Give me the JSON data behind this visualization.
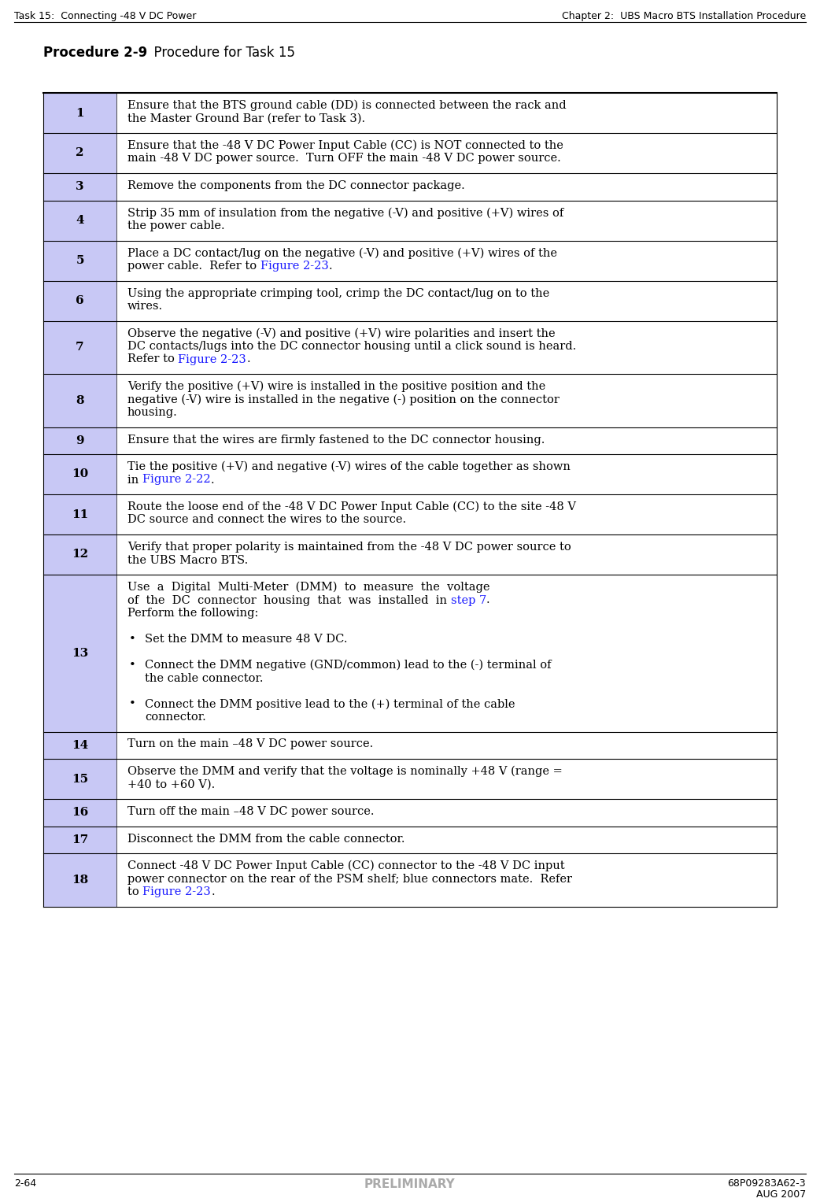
{
  "header_left": "Task 15:  Connecting -48 V DC Power",
  "header_right": "Chapter 2:  UBS Macro BTS Installation Procedure",
  "title_bold": "Procedure 2-9",
  "title_normal": "  Procedure for Task 15",
  "footer_left": "2-64",
  "footer_center": "PRELIMINARY",
  "footer_right": "68P09283A62-3",
  "footer_right2": "AUG 2007",
  "step_col_color": "#c8c8f5",
  "rows": [
    {
      "num": "1",
      "lines": [
        {
          "text": "Ensure that the BTS ground cable (DD) is connected between the rack and",
          "color": "black"
        },
        {
          "text": "the Master Ground Bar (refer to Task 3).",
          "color": "black"
        }
      ]
    },
    {
      "num": "2",
      "lines": [
        {
          "text": "Ensure that the -48 V DC Power Input Cable (CC) is NOT connected to the",
          "color": "black"
        },
        {
          "text": "main -48 V DC power source.  Turn OFF the main -48 V DC power source.",
          "color": "black"
        }
      ]
    },
    {
      "num": "3",
      "lines": [
        {
          "text": "Remove the components from the DC connector package.",
          "color": "black"
        }
      ]
    },
    {
      "num": "4",
      "lines": [
        {
          "text": "Strip 35 mm of insulation from the negative (-V) and positive (+V) wires of",
          "color": "black"
        },
        {
          "text": "the power cable.",
          "color": "black"
        }
      ]
    },
    {
      "num": "5",
      "lines": [
        {
          "text": "Place a DC contact/lug on the negative (-V) and positive (+V) wires of the",
          "color": "black"
        },
        {
          "text_parts": [
            {
              "text": "power cable.  Refer to ",
              "color": "black"
            },
            {
              "text": "Figure 2-23",
              "color": "#1a1aff"
            },
            {
              "text": ".",
              "color": "black"
            }
          ]
        }
      ]
    },
    {
      "num": "6",
      "lines": [
        {
          "text": "Using the appropriate crimping tool, crimp the DC contact/lug on to the",
          "color": "black"
        },
        {
          "text": "wires.",
          "color": "black"
        }
      ]
    },
    {
      "num": "7",
      "lines": [
        {
          "text": "Observe the negative (-V) and positive (+V) wire polarities and insert the",
          "color": "black"
        },
        {
          "text": "DC contacts/lugs into the DC connector housing until a click sound is heard.",
          "color": "black"
        },
        {
          "text_parts": [
            {
              "text": "Refer to ",
              "color": "black"
            },
            {
              "text": "Figure 2-23",
              "color": "#1a1aff"
            },
            {
              "text": ".",
              "color": "black"
            }
          ]
        }
      ]
    },
    {
      "num": "8",
      "lines": [
        {
          "text": "Verify the positive (+V) wire is installed in the positive position and the",
          "color": "black"
        },
        {
          "text": "negative (-V) wire is installed in the negative (-) position on the connector",
          "color": "black"
        },
        {
          "text": "housing.",
          "color": "black"
        }
      ]
    },
    {
      "num": "9",
      "lines": [
        {
          "text": "Ensure that the wires are firmly fastened to the DC connector housing.",
          "color": "black"
        }
      ]
    },
    {
      "num": "10",
      "lines": [
        {
          "text": "Tie the positive (+V) and negative (-V) wires of the cable together as shown",
          "color": "black"
        },
        {
          "text_parts": [
            {
              "text": "in ",
              "color": "black"
            },
            {
              "text": "Figure 2-22",
              "color": "#1a1aff"
            },
            {
              "text": ".",
              "color": "black"
            }
          ]
        }
      ]
    },
    {
      "num": "11",
      "lines": [
        {
          "text": "Route the loose end of the -48 V DC Power Input Cable (CC) to the site -48 V",
          "color": "black"
        },
        {
          "text": "DC source and connect the wires to the source.",
          "color": "black"
        }
      ]
    },
    {
      "num": "12",
      "lines": [
        {
          "text": "Verify that proper polarity is maintained from the -48 V DC power source to",
          "color": "black"
        },
        {
          "text": "the UBS Macro BTS.",
          "color": "black"
        }
      ]
    },
    {
      "num": "13",
      "lines": [
        {
          "text": "Use  a  Digital  Multi-Meter  (DMM)  to  measure  the  voltage",
          "color": "black"
        },
        {
          "text_parts": [
            {
              "text": "of  the  DC  connector  housing  that  was  installed  in ",
              "color": "black"
            },
            {
              "text": "step 7",
              "color": "#1a1aff"
            },
            {
              "text": ".",
              "color": "black"
            }
          ]
        },
        {
          "text": "Perform the following:",
          "color": "black"
        },
        {
          "text": "",
          "color": "black"
        },
        {
          "bullet": true,
          "text": "Set the DMM to measure 48 V DC.",
          "color": "black"
        },
        {
          "text": "",
          "color": "black"
        },
        {
          "bullet": true,
          "text": "Connect the DMM negative (GND/common) lead to the (-) terminal of",
          "color": "black"
        },
        {
          "text_indent": "the cable connector.",
          "color": "black"
        },
        {
          "text": "",
          "color": "black"
        },
        {
          "bullet": true,
          "text": "Connect the DMM positive lead to the (+) terminal of the cable",
          "color": "black"
        },
        {
          "text_indent": "connector.",
          "color": "black"
        }
      ]
    },
    {
      "num": "14",
      "lines": [
        {
          "text": "Turn on the main –48 V DC power source.",
          "color": "black"
        }
      ]
    },
    {
      "num": "15",
      "lines": [
        {
          "text": "Observe the DMM and verify that the voltage is nominally +48 V (range =",
          "color": "black"
        },
        {
          "text": "+40 to +60 V).",
          "color": "black"
        }
      ]
    },
    {
      "num": "16",
      "lines": [
        {
          "text": "Turn off the main –48 V DC power source.",
          "color": "black"
        }
      ]
    },
    {
      "num": "17",
      "lines": [
        {
          "text": "Disconnect the DMM from the cable connector.",
          "color": "black"
        }
      ]
    },
    {
      "num": "18",
      "lines": [
        {
          "text": "Connect -48 V DC Power Input Cable (CC) connector to the -48 V DC input",
          "color": "black"
        },
        {
          "text": "power connector on the rear of the PSM shelf; blue connectors mate.  Refer",
          "color": "black"
        },
        {
          "text_parts": [
            {
              "text": "to ",
              "color": "black"
            },
            {
              "text": "Figure 2-23",
              "color": "#1a1aff"
            },
            {
              "text": ".",
              "color": "black"
            }
          ]
        }
      ]
    }
  ]
}
